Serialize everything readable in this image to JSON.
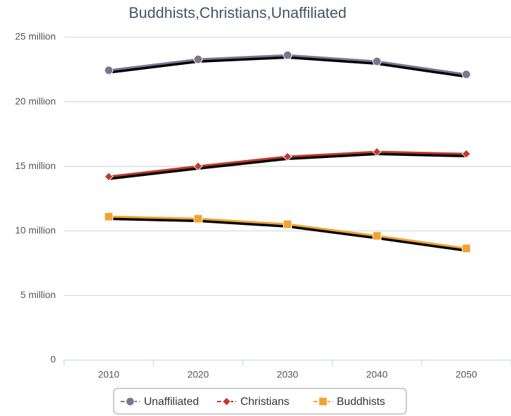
{
  "chart_data": {
    "type": "line",
    "title": "Buddhists,Christians,Unaffiliated",
    "categories": [
      "2010",
      "2020",
      "2030",
      "2040",
      "2050"
    ],
    "series": [
      {
        "name": "Unaffiliated",
        "color": "#7f7491",
        "marker": "circle",
        "values": [
          22.44,
          23.29,
          23.61,
          23.13,
          22.12
        ]
      },
      {
        "name": "Christians",
        "color": "#c0392b",
        "marker": "diamond",
        "values": [
          14.21,
          15.01,
          15.76,
          16.13,
          15.97
        ]
      },
      {
        "name": "Buddhists",
        "color": "#f0a32f",
        "marker": "square",
        "values": [
          11.11,
          10.95,
          10.52,
          9.62,
          8.65
        ]
      }
    ],
    "ylim": [
      0,
      25
    ],
    "yticks": [
      0,
      {
        "value": 5,
        "label": "5 million"
      },
      {
        "value": 10,
        "label": "10 million"
      },
      {
        "value": 15,
        "label": "15 million"
      },
      {
        "value": 20,
        "label": "20 million"
      },
      {
        "value": 25,
        "label": "25 million"
      }
    ],
    "grid": true,
    "legend": "bottom"
  }
}
